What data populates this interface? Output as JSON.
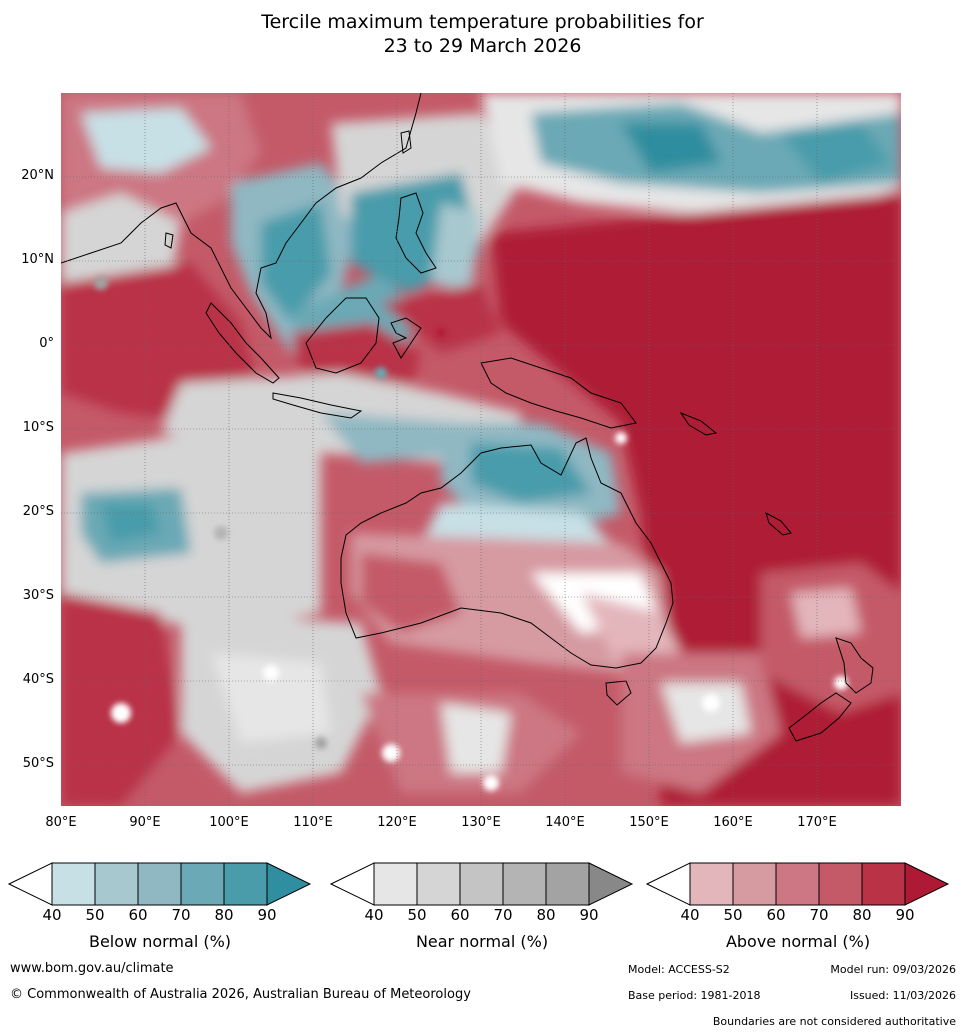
{
  "title": {
    "line1": "Tercile maximum temperature probabilities for",
    "line2": "23 to 29 March 2026"
  },
  "map": {
    "lat_labels": [
      "20°N",
      "10°N",
      "0°",
      "10°S",
      "20°S",
      "30°S",
      "40°S",
      "50°S"
    ],
    "lon_labels": [
      "80°E",
      "90°E",
      "100°E",
      "110°E",
      "120°E",
      "130°E",
      "140°E",
      "150°E",
      "160°E",
      "170°E"
    ]
  },
  "legend": {
    "ticks": [
      "40",
      "50",
      "60",
      "70",
      "80",
      "90"
    ],
    "below": {
      "label": "Below normal (%)",
      "colors": [
        "#c7e0e6",
        "#a8c8cf",
        "#8fb8c3",
        "#6aa9b5",
        "#4a9cab",
        "#2f8e9f"
      ]
    },
    "near": {
      "label": "Near normal (%)",
      "colors": [
        "#e6e6e6",
        "#d5d5d5",
        "#c4c4c4",
        "#b4b4b4",
        "#a3a3a3",
        "#888888"
      ]
    },
    "above": {
      "label": "Above normal (%)",
      "colors": [
        "#e3b6bc",
        "#d69aa1",
        "#cc7783",
        "#c45a68",
        "#b93246",
        "#ae1a35"
      ]
    }
  },
  "footer": {
    "website": "www.bom.gov.au/climate",
    "copyright": "© Commonwealth of Australia 2026, Australian Bureau of Meteorology",
    "model": "Model: ACCESS-S2",
    "model_run": "Model run: 09/03/2026",
    "base_period": "Base period: 1981-2018",
    "issued": "Issued: 11/03/2026",
    "disclaimer": "Boundaries are not considered authoritative"
  }
}
